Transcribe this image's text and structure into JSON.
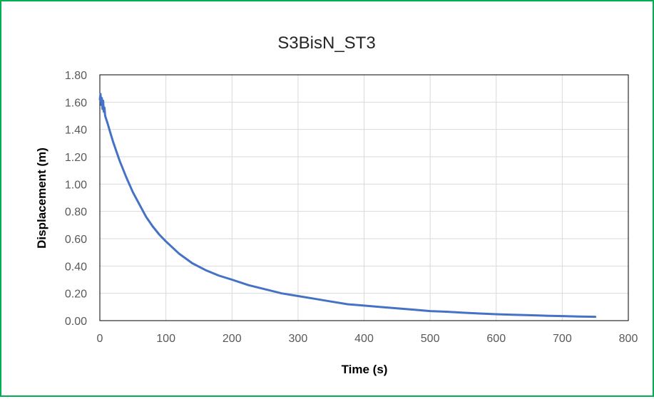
{
  "chart_data": {
    "type": "line",
    "title": "S3BisN_ST3",
    "xlabel": "Time (s)",
    "ylabel": "Displacement (m)",
    "xlim": [
      0,
      800
    ],
    "ylim": [
      0,
      1.8
    ],
    "xticks": [
      "0",
      "100",
      "200",
      "300",
      "400",
      "500",
      "600",
      "700",
      "800"
    ],
    "yticks": [
      "0.00",
      "0.20",
      "0.40",
      "0.60",
      "0.80",
      "1.00",
      "1.20",
      "1.40",
      "1.60",
      "1.80"
    ],
    "grid": true,
    "legend": "none",
    "series": [
      {
        "color": "#4472c4",
        "x": [
          0,
          1,
          2,
          3,
          4,
          5,
          6,
          7,
          8,
          10,
          12,
          15,
          20,
          25,
          30,
          40,
          50,
          60,
          70,
          80,
          90,
          100,
          120,
          140,
          160,
          180,
          200,
          225,
          250,
          275,
          300,
          325,
          350,
          375,
          400,
          425,
          450,
          475,
          500,
          525,
          550,
          575,
          600,
          625,
          650,
          675,
          700,
          725,
          750
        ],
        "y": [
          1.62,
          1.66,
          1.58,
          1.63,
          1.55,
          1.61,
          1.53,
          1.56,
          1.5,
          1.47,
          1.44,
          1.39,
          1.31,
          1.24,
          1.17,
          1.05,
          0.94,
          0.85,
          0.76,
          0.69,
          0.63,
          0.58,
          0.49,
          0.42,
          0.37,
          0.33,
          0.3,
          0.26,
          0.23,
          0.2,
          0.18,
          0.16,
          0.14,
          0.12,
          0.11,
          0.1,
          0.09,
          0.08,
          0.07,
          0.065,
          0.058,
          0.052,
          0.047,
          0.043,
          0.04,
          0.036,
          0.033,
          0.03,
          0.028
        ]
      }
    ]
  }
}
